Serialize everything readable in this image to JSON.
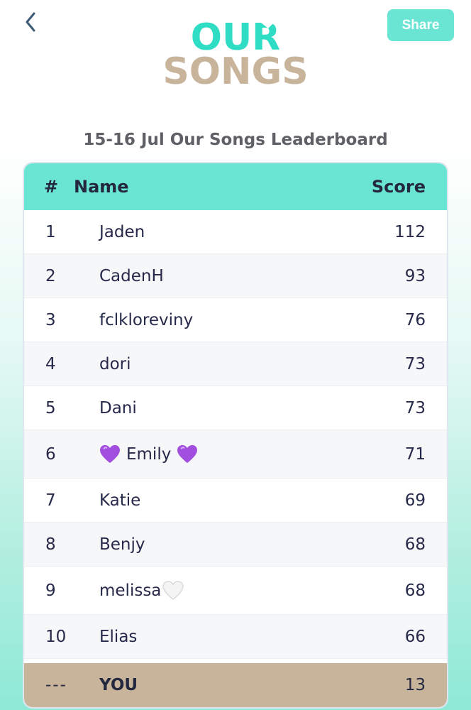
{
  "header": {
    "back_icon": "chevron-left-icon",
    "logo_line1": "OUR",
    "logo_line2": "SONGS",
    "share_label": "Share"
  },
  "colors": {
    "accent_mint": "#6ae5d4",
    "logo_tan": "#c8b39b",
    "text_dark": "#26294a",
    "title_grey": "#5f6066"
  },
  "leaderboard": {
    "title": "15-16 Jul Our Songs Leaderboard",
    "columns": {
      "rank": "#",
      "name": "Name",
      "score": "Score"
    },
    "rows": [
      {
        "rank": "1",
        "name": "Jaden",
        "score": "112"
      },
      {
        "rank": "2",
        "name": "CadenH",
        "score": "93"
      },
      {
        "rank": "3",
        "name": "fclkloreviny",
        "score": "76"
      },
      {
        "rank": "4",
        "name": "dori",
        "score": "73"
      },
      {
        "rank": "5",
        "name": "Dani",
        "score": "73"
      },
      {
        "rank": "6",
        "name": "Emily",
        "score": "71",
        "decoration": "purple-heart-icon"
      },
      {
        "rank": "7",
        "name": "Katie",
        "score": "69"
      },
      {
        "rank": "8",
        "name": "Benjy",
        "score": "68"
      },
      {
        "rank": "9",
        "name": "melissa",
        "score": "68",
        "decoration": "white-heart-icon"
      },
      {
        "rank": "10",
        "name": "Elias",
        "score": "66"
      }
    ],
    "you": {
      "rank": "---",
      "name": "YOU",
      "score": "13"
    }
  }
}
